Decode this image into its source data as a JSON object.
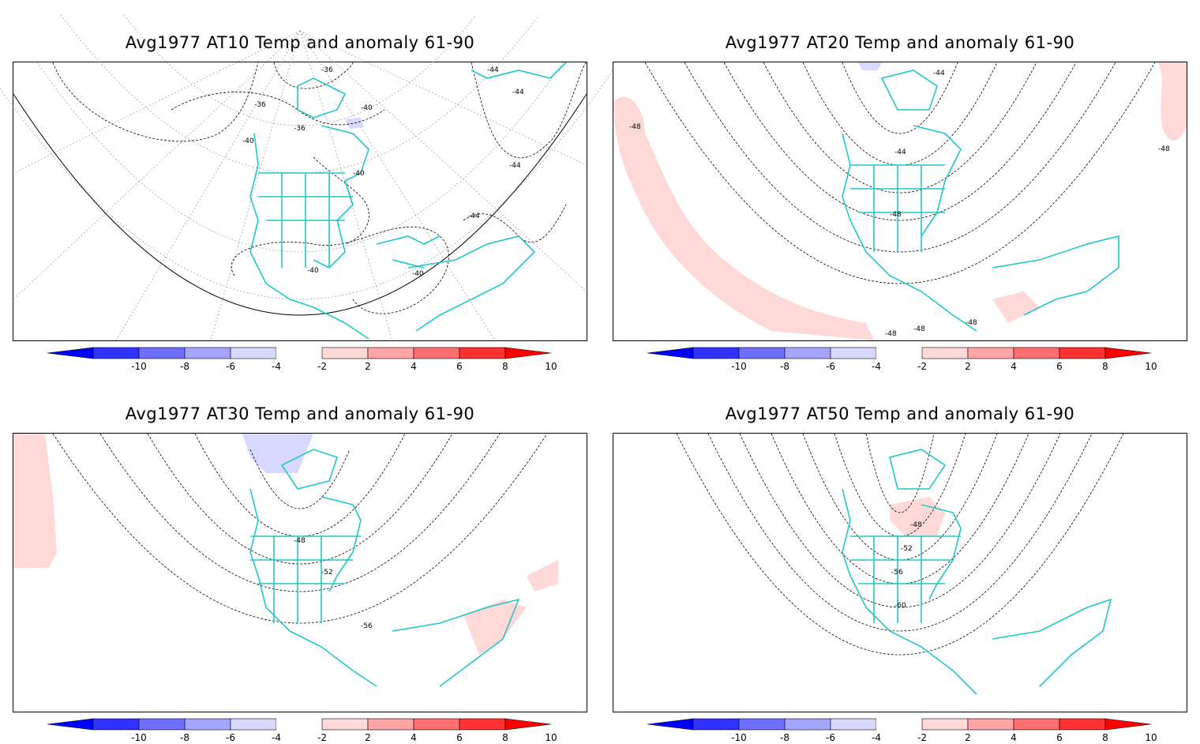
{
  "panels": [
    {
      "title": "Avg1977 AT10 Temp and anomaly 61-90",
      "contour_labels": [
        "-36",
        "-36",
        "-36",
        "-40",
        "-40",
        "-40",
        "-40",
        "-40",
        "-44",
        "-44",
        "-44",
        "-44"
      ],
      "anomaly_patches": [
        "negative-small-hudson"
      ]
    },
    {
      "title": "Avg1977 AT20 Temp and anomaly 61-90",
      "contour_labels": [
        "-44",
        "-44",
        "-48",
        "-48",
        "-48",
        "-48",
        "-48",
        "-48"
      ],
      "anomaly_patches": [
        "positive-pacific-arc",
        "positive-atlantic-edge",
        "negative-small-north"
      ]
    },
    {
      "title": "Avg1977 AT30 Temp and anomaly 61-90",
      "contour_labels": [
        "-48",
        "-52",
        "-56"
      ],
      "anomaly_patches": [
        "negative-alaska",
        "positive-west-edge",
        "positive-south-america",
        "positive-east-edge"
      ]
    },
    {
      "title": "Avg1977 AT50 Temp and anomaly 61-90",
      "contour_labels": [
        "-48",
        "-52",
        "-56",
        "-60"
      ],
      "anomaly_patches": [
        "positive-hudson"
      ]
    }
  ],
  "colorbar": {
    "labels": [
      "-10",
      "-8",
      "-6",
      "-4",
      "-2",
      "2",
      "4",
      "6",
      "8",
      "10"
    ],
    "colors": [
      "#0000ff",
      "#3232ff",
      "#6f6fff",
      "#a5a5ff",
      "#d8d8ff",
      "#ffffff",
      "#ffd8d8",
      "#ffa5a5",
      "#ff6f6f",
      "#ff3232",
      "#ff0000"
    ]
  },
  "colors": {
    "coastline": "#20c8c8",
    "contour": "#000000",
    "grid": "#8c8c8c"
  }
}
